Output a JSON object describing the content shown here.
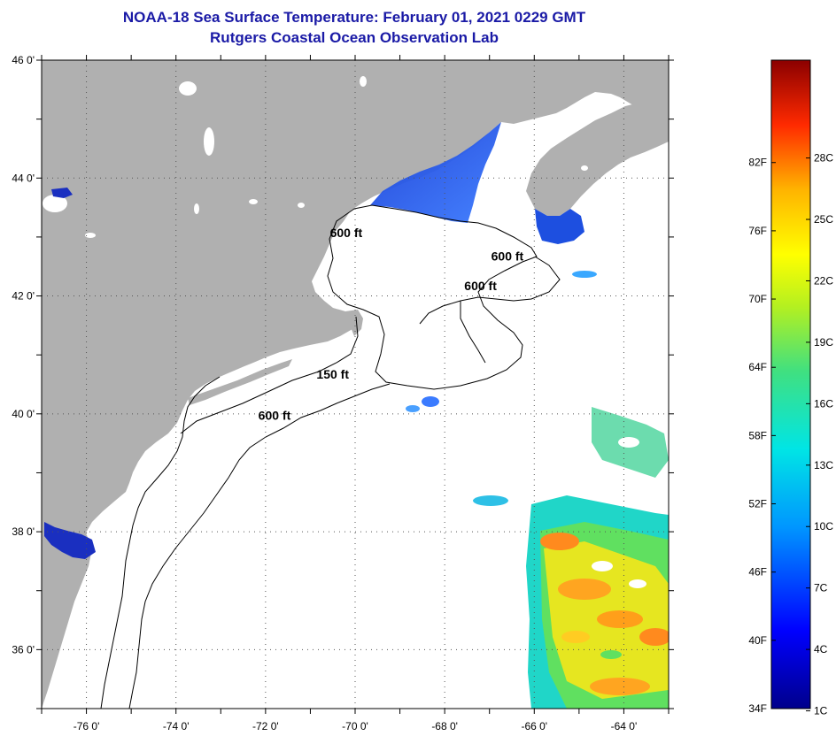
{
  "header": {
    "title": "NOAA-18 Sea Surface Temperature:  February 01, 2021 0229 GMT",
    "subtitle": "Rutgers Coastal Ocean Observation Lab"
  },
  "map": {
    "lon_range": [
      -77,
      -63
    ],
    "lat_range": [
      35,
      46
    ],
    "lon_ticks": [
      {
        "value": -76,
        "label": "-76 0'"
      },
      {
        "value": -74,
        "label": "-74 0'"
      },
      {
        "value": -72,
        "label": "-72 0'"
      },
      {
        "value": -70,
        "label": "-70 0'"
      },
      {
        "value": -68,
        "label": "-68 0'"
      },
      {
        "value": -66,
        "label": "-66 0'"
      },
      {
        "value": -64,
        "label": "-64 0'"
      }
    ],
    "lat_ticks": [
      {
        "value": 46,
        "label": "46 0'"
      },
      {
        "value": 44,
        "label": "44 0'"
      },
      {
        "value": 42,
        "label": "42 0'"
      },
      {
        "value": 40,
        "label": "40 0'"
      },
      {
        "value": 38,
        "label": "38 0'"
      },
      {
        "value": 36,
        "label": "36 0'"
      }
    ],
    "contour_labels": [
      {
        "text": "600 ft",
        "lon": -70.2,
        "lat": 43.0
      },
      {
        "text": "600 ft",
        "lon": -66.6,
        "lat": 42.6
      },
      {
        "text": "600 ft",
        "lon": -67.2,
        "lat": 42.1
      },
      {
        "text": "150 ft",
        "lon": -70.5,
        "lat": 40.6
      },
      {
        "text": "600 ft",
        "lon": -71.8,
        "lat": 39.9
      }
    ],
    "colors": {
      "land": "#b0b0b0",
      "ocean": "#ffffff",
      "grid": "#555555"
    }
  },
  "colorbar": {
    "fahrenheit": [
      {
        "value": 82,
        "label": "82F"
      },
      {
        "value": 76,
        "label": "76F"
      },
      {
        "value": 70,
        "label": "70F"
      },
      {
        "value": 64,
        "label": "64F"
      },
      {
        "value": 58,
        "label": "58F"
      },
      {
        "value": 52,
        "label": "52F"
      },
      {
        "value": 46,
        "label": "46F"
      },
      {
        "value": 40,
        "label": "40F"
      },
      {
        "value": 34,
        "label": "34F"
      }
    ],
    "celsius": [
      {
        "value": 28,
        "label": "28C"
      },
      {
        "value": 25,
        "label": "25C"
      },
      {
        "value": 22,
        "label": "22C"
      },
      {
        "value": 19,
        "label": "19C"
      },
      {
        "value": 16,
        "label": "16C"
      },
      {
        "value": 13,
        "label": "13C"
      },
      {
        "value": 10,
        "label": "10C"
      },
      {
        "value": 7,
        "label": "7C"
      },
      {
        "value": 4,
        "label": "4C"
      },
      {
        "value": 1,
        "label": "1C"
      }
    ]
  }
}
